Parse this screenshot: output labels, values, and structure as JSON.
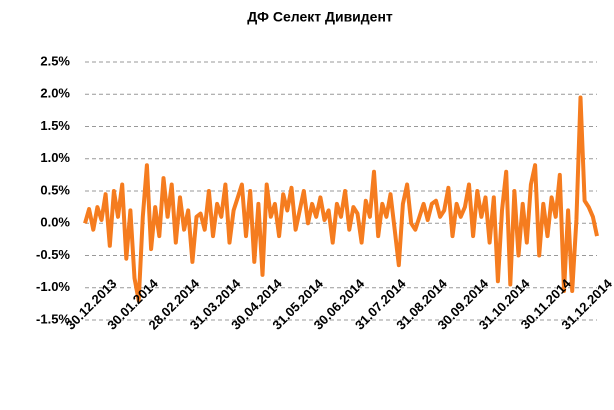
{
  "chart_data": {
    "type": "line",
    "title": "ДФ Селект Дивидент",
    "categories": [
      "30.12.2013",
      null,
      null,
      null,
      null,
      null,
      null,
      null,
      null,
      null,
      "30.01.2014",
      null,
      null,
      null,
      null,
      null,
      null,
      null,
      null,
      null,
      "28.02.2014",
      null,
      null,
      null,
      null,
      null,
      null,
      null,
      null,
      null,
      "31.03.2014",
      null,
      null,
      null,
      null,
      null,
      null,
      null,
      null,
      null,
      "30.04.2014",
      null,
      null,
      null,
      null,
      null,
      null,
      null,
      null,
      null,
      "31.05.2014",
      null,
      null,
      null,
      null,
      null,
      null,
      null,
      null,
      null,
      "30.06.2014",
      null,
      null,
      null,
      null,
      null,
      null,
      null,
      null,
      null,
      "31.07.2014",
      null,
      null,
      null,
      null,
      null,
      null,
      null,
      null,
      null,
      "31.08.2014",
      null,
      null,
      null,
      null,
      null,
      null,
      null,
      null,
      null,
      "30.09.2014",
      null,
      null,
      null,
      null,
      null,
      null,
      null,
      null,
      null,
      "31.10.2014",
      null,
      null,
      null,
      null,
      null,
      null,
      null,
      null,
      null,
      "30.11.2014",
      null,
      null,
      null,
      null,
      null,
      null,
      null,
      null,
      null,
      "31.12.2014",
      null,
      null,
      null,
      null
    ],
    "series": [
      {
        "color": "#f57c1f",
        "values": [
          0.0,
          0.22,
          -0.1,
          0.25,
          0.05,
          0.45,
          -0.35,
          0.5,
          0.1,
          0.6,
          -0.55,
          0.2,
          -0.85,
          -1.2,
          0.1,
          0.9,
          -0.4,
          0.25,
          -0.2,
          0.7,
          0.1,
          0.6,
          -0.3,
          0.4,
          -0.1,
          0.2,
          -0.6,
          0.1,
          0.15,
          -0.1,
          0.5,
          -0.2,
          0.3,
          0.1,
          0.6,
          -0.3,
          0.2,
          0.4,
          0.6,
          -0.2,
          0.5,
          -0.6,
          0.3,
          -0.8,
          0.6,
          0.1,
          0.3,
          -0.2,
          0.45,
          0.2,
          0.55,
          -0.1,
          0.2,
          0.5,
          0.0,
          0.3,
          0.1,
          0.4,
          0.05,
          0.2,
          -0.3,
          0.3,
          0.1,
          0.5,
          -0.1,
          0.25,
          0.15,
          -0.3,
          0.35,
          0.1,
          0.8,
          -0.2,
          0.3,
          0.1,
          0.45,
          -0.1,
          -0.65,
          0.3,
          0.6,
          0.0,
          -0.1,
          0.1,
          0.3,
          0.05,
          0.3,
          0.35,
          0.1,
          0.2,
          0.55,
          -0.2,
          0.3,
          0.1,
          0.25,
          0.6,
          -0.2,
          0.5,
          0.1,
          0.4,
          -0.3,
          0.4,
          -0.9,
          0.2,
          0.8,
          -0.95,
          0.5,
          -0.5,
          0.3,
          -0.3,
          0.6,
          0.9,
          -0.5,
          0.3,
          -0.2,
          0.4,
          0.1,
          0.75,
          -1.05,
          0.2,
          -1.05,
          0.05,
          1.95,
          0.35,
          0.25,
          0.1,
          -0.2
        ]
      }
    ],
    "ylim": [
      -1.5,
      2.5
    ],
    "yticks": [
      {
        "value": -1.5,
        "label": "-1.5%"
      },
      {
        "value": -1.0,
        "label": "-1.0%"
      },
      {
        "value": -0.5,
        "label": "-0.5%"
      },
      {
        "value": 0.0,
        "label": "0.0%"
      },
      {
        "value": 0.5,
        "label": "0.5%"
      },
      {
        "value": 1.0,
        "label": "1.0%"
      },
      {
        "value": 1.5,
        "label": "1.5%"
      },
      {
        "value": 2.0,
        "label": "2.0%"
      },
      {
        "value": 2.5,
        "label": "2.5%"
      }
    ],
    "grid": true
  }
}
